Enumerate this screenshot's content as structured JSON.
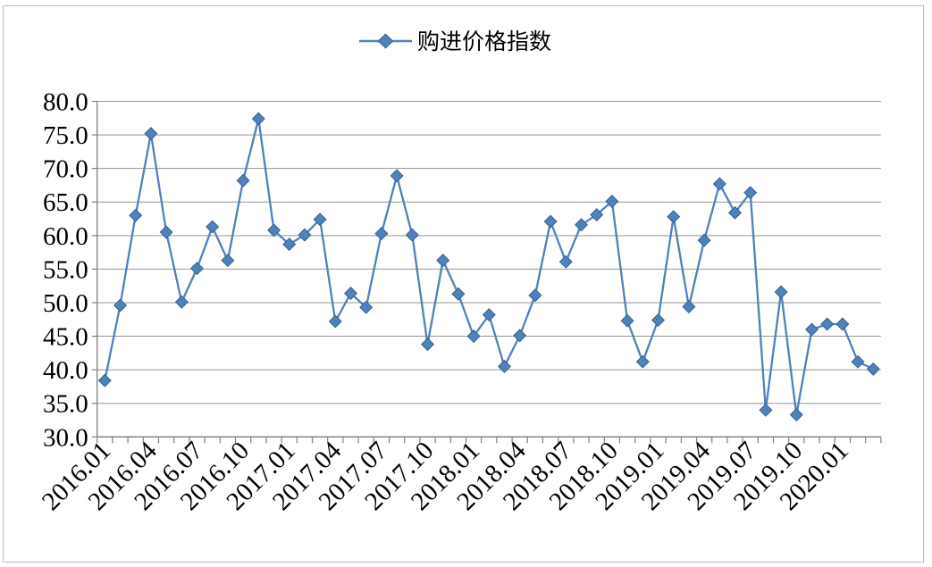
{
  "legend": {
    "position": "top-center"
  },
  "chart_data": {
    "type": "line",
    "title": "",
    "grid": true,
    "legend_position": "top-center",
    "marker": "diamond",
    "line_color": "#4F81BD",
    "marker_edge_color": "#38618F",
    "grid_color": "#969696",
    "axis_color": "#808080",
    "ylim": [
      30,
      80
    ],
    "y_tick_labels": [
      "80.0",
      "75.0",
      "70.0",
      "65.0",
      "60.0",
      "55.0",
      "50.0",
      "45.0",
      "40.0",
      "35.0",
      "30.0"
    ],
    "x_tick_labels": [
      "2016.01",
      "2016.04",
      "2016.07",
      "2016.10",
      "2017.01",
      "2017.04",
      "2017.07",
      "2017.10",
      "2018.01",
      "2018.04",
      "2018.07",
      "2018.10",
      "2019.01",
      "2019.04",
      "2019.07",
      "2019.10",
      "2020.01"
    ],
    "x": [
      "2016.01",
      "2016.02",
      "2016.03",
      "2016.04",
      "2016.05",
      "2016.06",
      "2016.07",
      "2016.08",
      "2016.09",
      "2016.10",
      "2016.11",
      "2016.12",
      "2017.01",
      "2017.02",
      "2017.03",
      "2017.04",
      "2017.05",
      "2017.06",
      "2017.07",
      "2017.08",
      "2017.09",
      "2017.10",
      "2017.11",
      "2017.12",
      "2018.01",
      "2018.02",
      "2018.03",
      "2018.04",
      "2018.05",
      "2018.06",
      "2018.07",
      "2018.08",
      "2018.09",
      "2018.10",
      "2018.11",
      "2018.12",
      "2019.01",
      "2019.02",
      "2019.03",
      "2019.04",
      "2019.05",
      "2019.06",
      "2019.07",
      "2019.08",
      "2019.09",
      "2019.10",
      "2019.11",
      "2019.12",
      "2020.01",
      "2020.02",
      "2020.03"
    ],
    "series": [
      {
        "name": "购进价格指数",
        "values": [
          38.4,
          49.6,
          63.0,
          75.2,
          60.5,
          50.1,
          55.1,
          61.3,
          56.3,
          68.2,
          77.4,
          60.8,
          58.7,
          60.1,
          62.4,
          47.2,
          51.4,
          49.3,
          60.3,
          68.9,
          60.1,
          43.8,
          56.3,
          51.3,
          45.0,
          48.2,
          40.5,
          45.1,
          51.1,
          62.1,
          56.1,
          61.6,
          63.1,
          65.1,
          47.3,
          41.2,
          47.4,
          62.8,
          49.4,
          59.3,
          67.7,
          63.4,
          66.4,
          34.0,
          51.6,
          33.3,
          46.0,
          46.8,
          46.8,
          41.2,
          40.1
        ]
      }
    ]
  }
}
